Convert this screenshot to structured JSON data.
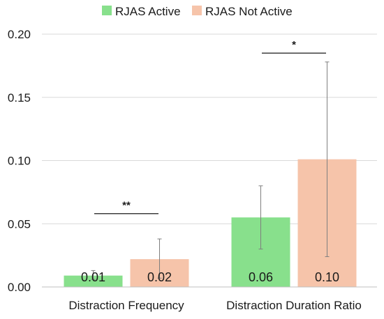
{
  "chart_data": {
    "type": "bar",
    "title": "",
    "xlabel": "",
    "ylabel": "",
    "ylim": [
      0,
      0.2
    ],
    "yticks": [
      "0.00",
      "0.05",
      "0.10",
      "0.15",
      "0.20"
    ],
    "grid": true,
    "legend": "top-center",
    "categories": [
      "Distraction Frequency",
      "Distraction Duration Ratio"
    ],
    "series": [
      {
        "name": "RJAS Active",
        "color": "#88e08c",
        "values": [
          0.009,
          0.055
        ],
        "labels": [
          "0.01",
          "0.06"
        ],
        "error_low": [
          0.006,
          0.03
        ],
        "error_high": [
          0.013,
          0.08
        ]
      },
      {
        "name": "RJAS Not Active",
        "color": "#f6c4aa",
        "values": [
          0.022,
          0.101
        ],
        "labels": [
          "0.02",
          "0.10"
        ],
        "error_low": [
          0.007,
          0.024
        ],
        "error_high": [
          0.038,
          0.178
        ]
      }
    ],
    "significance": [
      {
        "category_index": 0,
        "marker": "**",
        "y": 0.058
      },
      {
        "category_index": 1,
        "marker": "*",
        "y": 0.185
      }
    ]
  }
}
